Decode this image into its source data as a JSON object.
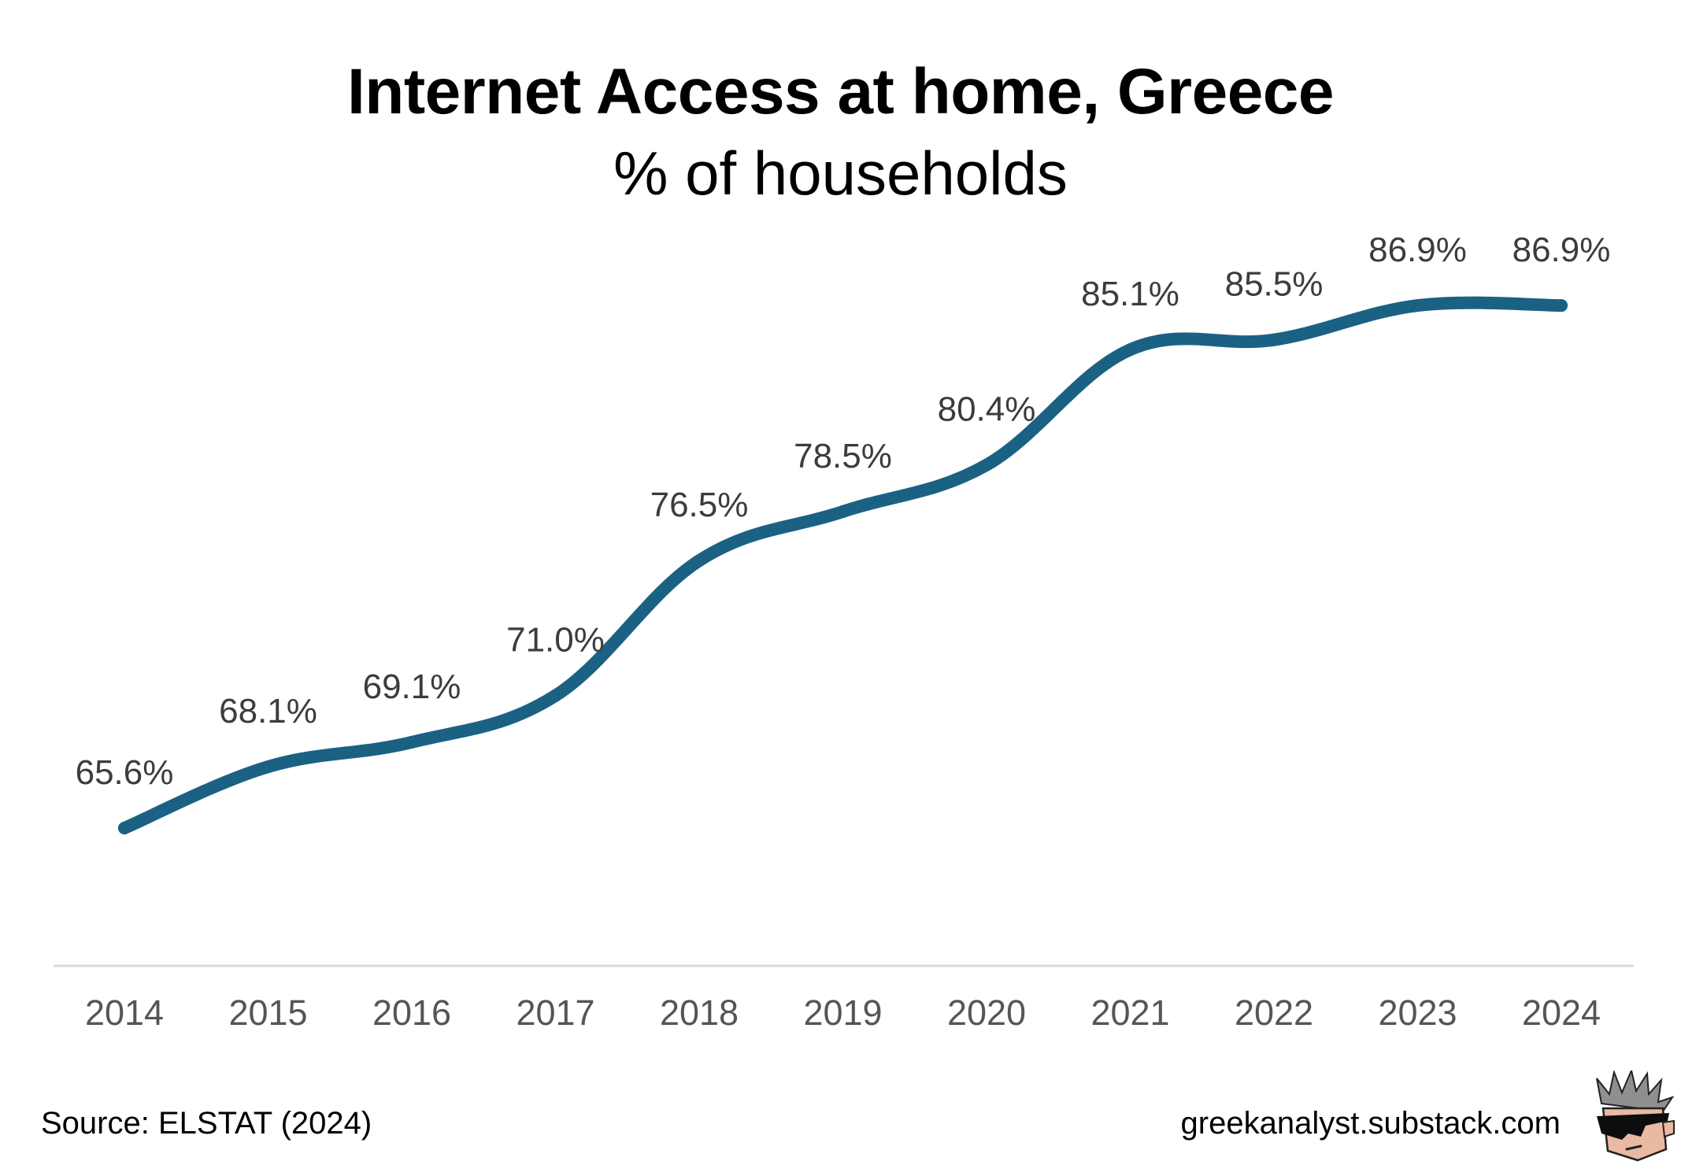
{
  "header": {
    "title": "Internet Access at home, Greece",
    "subtitle": "% of households"
  },
  "footer": {
    "source": "Source: ELSTAT (2024)",
    "site": "greekanalyst.substack.com"
  },
  "colors": {
    "line": "#1b6184",
    "data_label": "#3c3c3c",
    "tick_label": "#555555",
    "axis": "#d9d9d9"
  },
  "icons": {
    "mascot": "sunglasses-character-icon"
  },
  "chart_data": {
    "type": "line",
    "title": "Internet Access at home, Greece",
    "subtitle": "% of households",
    "xlabel": "",
    "ylabel": "",
    "categories": [
      "2014",
      "2015",
      "2016",
      "2017",
      "2018",
      "2019",
      "2020",
      "2021",
      "2022",
      "2023",
      "2024"
    ],
    "series": [
      {
        "values": [
          65.6,
          68.1,
          69.1,
          71.0,
          76.5,
          78.5,
          80.4,
          85.1,
          85.5,
          86.9,
          86.9
        ],
        "labels": [
          "65.6%",
          "68.1%",
          "69.1%",
          "71.0%",
          "76.5%",
          "78.5%",
          "80.4%",
          "85.1%",
          "85.5%",
          "86.9%",
          "86.9%"
        ]
      }
    ],
    "ylim": [
      60,
      90
    ],
    "grid": false,
    "legend": "none",
    "smooth": true
  }
}
